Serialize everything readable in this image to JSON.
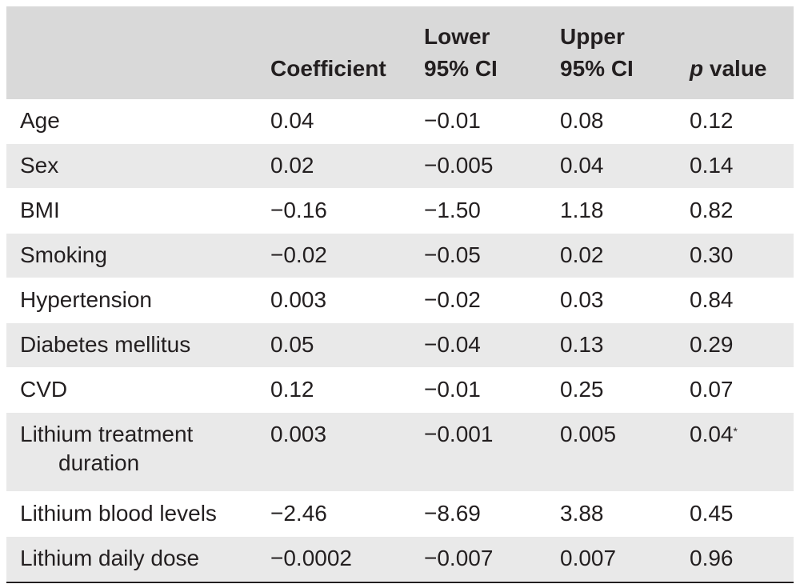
{
  "header": {
    "coefficient": "Coefficient",
    "lower_line1": "Lower",
    "lower_line2": "95% CI",
    "upper_line1": "Upper",
    "upper_line2": "95% CI",
    "p_italic": "p",
    "p_rest": " value"
  },
  "rows": [
    {
      "label": "Age",
      "coef": "0.04",
      "lower": "−0.01",
      "upper": "0.08",
      "p": "0.12"
    },
    {
      "label": "Sex",
      "coef": "0.02",
      "lower": "−0.005",
      "upper": "0.04",
      "p": "0.14"
    },
    {
      "label": "BMI",
      "coef": "−0.16",
      "lower": "−1.50",
      "upper": "1.18",
      "p": "0.82"
    },
    {
      "label": "Smoking",
      "coef": "−0.02",
      "lower": "−0.05",
      "upper": "0.02",
      "p": "0.30"
    },
    {
      "label": "Hypertension",
      "coef": "0.003",
      "lower": "−0.02",
      "upper": "0.03",
      "p": "0.84"
    },
    {
      "label": "Diabetes mellitus",
      "coef": "0.05",
      "lower": "−0.04",
      "upper": "0.13",
      "p": "0.29"
    },
    {
      "label": "CVD",
      "coef": "0.12",
      "lower": "−0.01",
      "upper": "0.25",
      "p": "0.07"
    },
    {
      "label": "Lithium treatment",
      "label2": "duration",
      "coef": "0.003",
      "lower": "−0.001",
      "upper": "0.005",
      "p": "0.04",
      "p_mark": "*"
    },
    {
      "label": "Lithium blood levels",
      "coef": "−2.46",
      "lower": "−8.69",
      "upper": "3.88",
      "p": "0.45"
    },
    {
      "label": "Lithium daily dose",
      "coef": "−0.0002",
      "lower": "−0.007",
      "upper": "0.007",
      "p": "0.96"
    }
  ]
}
